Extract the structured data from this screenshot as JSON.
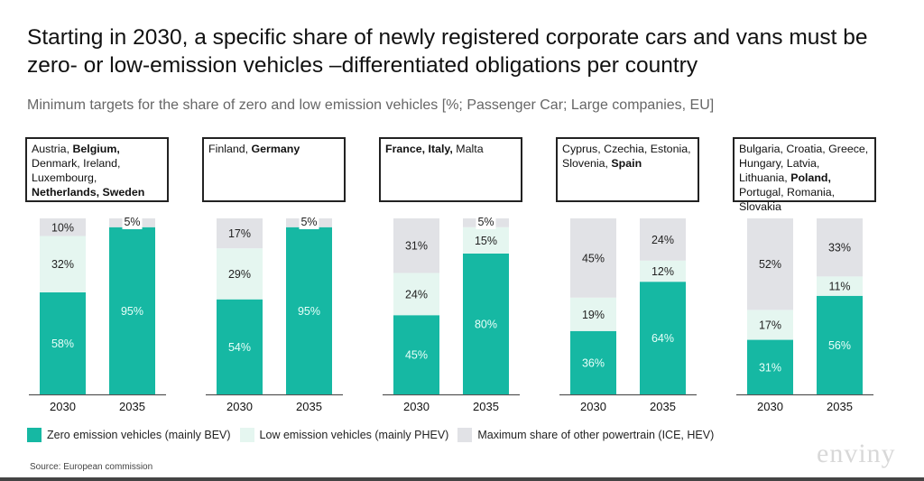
{
  "title": "Starting in 2030, a specific share of newly registered corporate cars and vans must be zero- or low-emission vehicles –differentiated obligations per country",
  "subtitle": "Minimum targets for the share of zero and low emission vehicles [%; Passenger Car; Large companies, EU]",
  "source": "Source: European commission",
  "logo": "enviny",
  "colors": {
    "zero": "#16b8a3",
    "low": "#e5f6f0",
    "other": "#e1e2e6"
  },
  "chart_data": {
    "type": "bar",
    "stacked": true,
    "categories": [
      "2030",
      "2035"
    ],
    "ylim": [
      0,
      100
    ],
    "legend": [
      "Zero emission vehicles (mainly BEV)",
      "Low emission vehicles (mainly PHEV)",
      "Maximum share of other powertrain (ICE, HEV)"
    ],
    "legend_position": "bottom",
    "groups": [
      {
        "countries": [
          {
            "t": "Austria, ",
            "b": false
          },
          {
            "t": "Belgium,",
            "b": true
          },
          {
            "t": " Denmark, Ireland, Luxembourg, ",
            "b": false
          },
          {
            "t": "Netherlands, Sweden",
            "b": true
          }
        ],
        "zero": [
          58,
          95
        ],
        "low": [
          32,
          0
        ],
        "other": [
          10,
          5
        ]
      },
      {
        "countries": [
          {
            "t": "Finland, ",
            "b": false
          },
          {
            "t": "Germany",
            "b": true
          }
        ],
        "zero": [
          54,
          95
        ],
        "low": [
          29,
          0
        ],
        "other": [
          17,
          5
        ]
      },
      {
        "countries": [
          {
            "t": "France, Italy,",
            "b": true
          },
          {
            "t": " Malta",
            "b": false
          }
        ],
        "zero": [
          45,
          80
        ],
        "low": [
          24,
          15
        ],
        "other": [
          31,
          5
        ]
      },
      {
        "countries": [
          {
            "t": "Cyprus, Czechia, Estonia, Slovenia, ",
            "b": false
          },
          {
            "t": "Spain",
            "b": true
          }
        ],
        "zero": [
          36,
          64
        ],
        "low": [
          19,
          12
        ],
        "other": [
          45,
          24
        ]
      },
      {
        "countries": [
          {
            "t": "Bulgaria, Croatia, Greece, Hungary, Latvia, Lithuania, ",
            "b": false
          },
          {
            "t": "Poland,",
            "b": true
          },
          {
            "t": " Portugal, Romania, Slovakia",
            "b": false
          }
        ],
        "zero": [
          31,
          56
        ],
        "low": [
          17,
          11
        ],
        "other": [
          52,
          33
        ]
      }
    ]
  }
}
